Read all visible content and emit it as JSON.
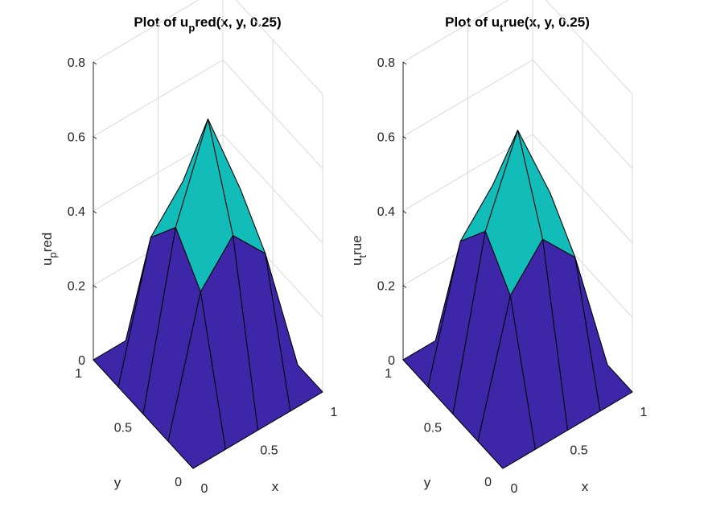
{
  "colors": {
    "low": "#3e26a8",
    "mid": "#12bdb9",
    "high": "#a5c63b",
    "edge": "#000000",
    "grid": "#d9d9d9",
    "axis": "#262626"
  },
  "chart_data": [
    {
      "type": "surface",
      "title": "Plot of u_pred(x, y, 0.25)",
      "title_parts": {
        "pre": "Plot of u",
        "sub": "p",
        "post": "red(x, y, 0.25)"
      },
      "zlabel_parts": {
        "pre": "u",
        "sub": "p",
        "post": "red"
      },
      "xlabel": "x",
      "ylabel": "y",
      "x": [
        0,
        0.25,
        0.5,
        0.75,
        1
      ],
      "y": [
        0,
        0.25,
        0.5,
        0.75,
        1
      ],
      "z": [
        [
          0,
          0,
          0,
          0,
          0
        ],
        [
          0,
          0.35,
          0.45,
          0.35,
          0
        ],
        [
          0,
          0.45,
          0.69,
          0.45,
          0
        ],
        [
          0,
          0.35,
          0.45,
          0.35,
          0
        ],
        [
          0,
          0,
          0,
          0,
          0
        ]
      ],
      "xlim": [
        0,
        1
      ],
      "ylim": [
        0,
        1
      ],
      "zlim": [
        0,
        0.8
      ],
      "xticks": [
        "0",
        "0.5",
        "1"
      ],
      "yticks": [
        "0",
        "0.5",
        "1"
      ],
      "zticks": [
        "0",
        "0.2",
        "0.4",
        "0.6",
        "0.8"
      ],
      "grid": true
    },
    {
      "type": "surface",
      "title": "Plot of u_true(x, y, 0.25)",
      "title_parts": {
        "pre": "Plot of u",
        "sub": "t",
        "post": "rue(x, y, 0.25)"
      },
      "zlabel_parts": {
        "pre": "u",
        "sub": "t",
        "post": "rue"
      },
      "xlabel": "x",
      "ylabel": "y",
      "x": [
        0,
        0.25,
        0.5,
        0.75,
        1
      ],
      "y": [
        0,
        0.25,
        0.5,
        0.75,
        1
      ],
      "z": [
        [
          0,
          0,
          0,
          0,
          0
        ],
        [
          0,
          0.34,
          0.44,
          0.34,
          0
        ],
        [
          0,
          0.44,
          0.66,
          0.44,
          0
        ],
        [
          0,
          0.34,
          0.44,
          0.34,
          0
        ],
        [
          0,
          0,
          0,
          0,
          0
        ]
      ],
      "xlim": [
        0,
        1
      ],
      "ylim": [
        0,
        1
      ],
      "zlim": [
        0,
        0.8
      ],
      "xticks": [
        "0",
        "0.5",
        "1"
      ],
      "yticks": [
        "0",
        "0.5",
        "1"
      ],
      "zticks": [
        "0",
        "0.2",
        "0.4",
        "0.6",
        "0.8"
      ],
      "grid": true
    }
  ]
}
